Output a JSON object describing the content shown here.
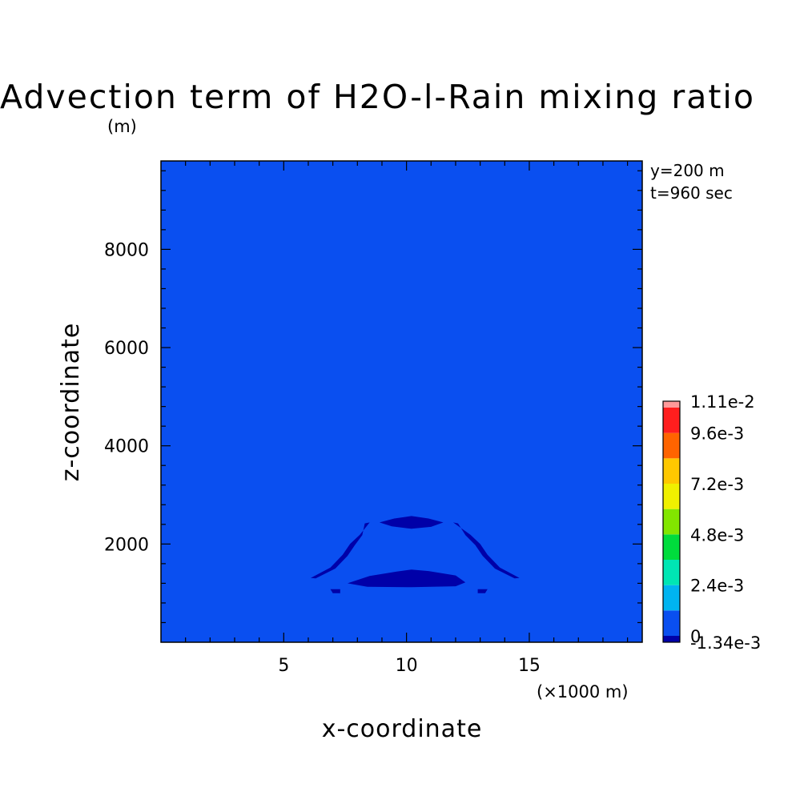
{
  "chart_data": {
    "type": "heatmap",
    "title": "Advection term of H2O-l-Rain mixing ratio",
    "title_unit": "(m)",
    "xlabel": "x-coordinate",
    "ylabel": "z-coordinate",
    "x_unit": "(×1000 m)",
    "xlim": [
      0,
      19.6
    ],
    "ylim": [
      0,
      9800
    ],
    "x_ticks": [
      5,
      10,
      15
    ],
    "x_tick_labels": [
      "5",
      "10",
      "15"
    ],
    "y_ticks": [
      2000,
      4000,
      6000,
      8000
    ],
    "y_tick_labels": [
      "2000",
      "4000",
      "6000",
      "8000"
    ],
    "annotations": [
      "y=200 m",
      "t=960 sec"
    ],
    "background_level_color": "#0a4ff0",
    "colorbar": {
      "labels": [
        "1.11e-2",
        "9.6e-3",
        "7.2e-3",
        "4.8e-3",
        "2.4e-3",
        "0",
        "-1.34e-3"
      ],
      "levels": [
        -0.00134,
        0,
        0.0012,
        0.0024,
        0.0036,
        0.0048,
        0.006,
        0.0072,
        0.0084,
        0.0096,
        0.0111
      ],
      "colors": [
        "#0000a8",
        "#0a4ff0",
        "#00b4f0",
        "#00e6b4",
        "#00dc3c",
        "#82e600",
        "#f0f000",
        "#ffc800",
        "#ff6400",
        "#ff1e1e",
        "#ff9a9a"
      ]
    },
    "regions": [
      {
        "name": "lower-negative-lobe",
        "color": "#0000a8",
        "points": [
          [
            7.6,
            1200
          ],
          [
            8.5,
            1350
          ],
          [
            9.6,
            1440
          ],
          [
            10.2,
            1480
          ],
          [
            10.9,
            1450
          ],
          [
            12.0,
            1360
          ],
          [
            12.4,
            1220
          ],
          [
            12.0,
            1140
          ],
          [
            10.2,
            1120
          ],
          [
            8.4,
            1130
          ]
        ]
      },
      {
        "name": "upper-negative-lobe",
        "color": "#0000a8",
        "points": [
          [
            8.9,
            2440
          ],
          [
            9.5,
            2520
          ],
          [
            10.2,
            2570
          ],
          [
            10.9,
            2520
          ],
          [
            11.5,
            2440
          ],
          [
            11.0,
            2350
          ],
          [
            10.2,
            2310
          ],
          [
            9.4,
            2360
          ]
        ]
      },
      {
        "name": "left-arc-band",
        "color": "#0000a8",
        "points": [
          [
            8.3,
            2420
          ],
          [
            8.5,
            2440
          ],
          [
            8.1,
            2190
          ],
          [
            7.7,
            2000
          ],
          [
            7.4,
            1780
          ],
          [
            6.9,
            1520
          ],
          [
            6.1,
            1310
          ],
          [
            6.3,
            1300
          ],
          [
            7.1,
            1500
          ],
          [
            7.6,
            1760
          ],
          [
            7.9,
            1980
          ],
          [
            8.2,
            2180
          ]
        ]
      },
      {
        "name": "right-arc-band",
        "color": "#0000a8",
        "points": [
          [
            11.9,
            2440
          ],
          [
            12.1,
            2420
          ],
          [
            12.4,
            2180
          ],
          [
            12.8,
            1980
          ],
          [
            13.1,
            1760
          ],
          [
            13.6,
            1500
          ],
          [
            14.4,
            1300
          ],
          [
            14.6,
            1310
          ],
          [
            13.8,
            1520
          ],
          [
            13.3,
            1780
          ],
          [
            13.0,
            2000
          ],
          [
            12.6,
            2190
          ]
        ]
      },
      {
        "name": "left-bottom-spot",
        "color": "#0000a8",
        "points": [
          [
            6.9,
            1080
          ],
          [
            7.3,
            1080
          ],
          [
            7.3,
            1000
          ],
          [
            7.0,
            1000
          ]
        ]
      },
      {
        "name": "right-bottom-spot",
        "color": "#0000a8",
        "points": [
          [
            12.9,
            1080
          ],
          [
            13.3,
            1080
          ],
          [
            13.2,
            1000
          ],
          [
            12.9,
            1000
          ]
        ]
      }
    ]
  }
}
